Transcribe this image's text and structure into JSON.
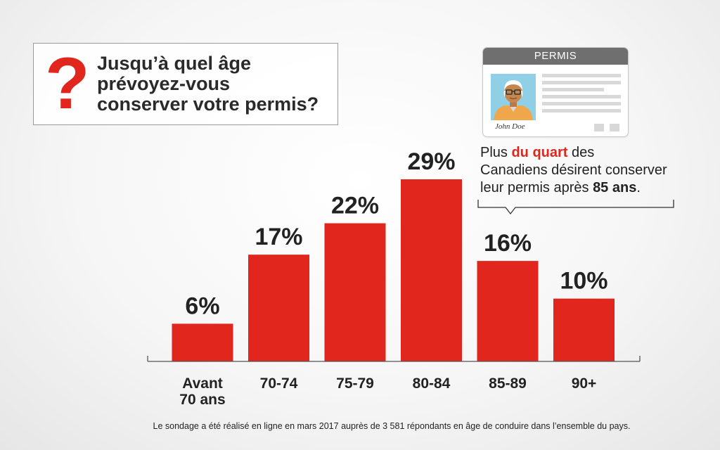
{
  "question": {
    "mark": "?",
    "line1": "Jusqu’à quel âge",
    "line2": "prévoyez-vous",
    "line3": "conserver votre permis?"
  },
  "license_card": {
    "header": "PERMIS",
    "name": "John Doe",
    "photo_icon": "person-portrait-icon"
  },
  "callout": {
    "part1": "Plus ",
    "highlight": "du quart",
    "part2": " des",
    "line2": "Canadiens désirent conserver",
    "line3_prefix": "leur permis après ",
    "line3_bold": "85 ans",
    "line3_suffix": "."
  },
  "chart_data": {
    "type": "bar",
    "categories": [
      "Avant\n70 ans",
      "70-74",
      "75-79",
      "80-84",
      "85-89",
      "90+"
    ],
    "values": [
      6,
      17,
      22,
      29,
      16,
      10
    ],
    "value_labels": [
      "6%",
      "17%",
      "22%",
      "29%",
      "16%",
      "10%"
    ],
    "unit": "%",
    "ylim": [
      0,
      30
    ],
    "grid": false,
    "legend": "none",
    "bar_color": "#e0261d"
  },
  "footnote": "Le sondage a été réalisé en ligne en mars 2017 auprès de 3 581 répondants en âge de conduire dans l’ensemble du pays.",
  "colors": {
    "accent_red": "#e0261d",
    "text_dark": "#222222",
    "card_header": "#6f6f6f",
    "photo_bg": "#8fd0e6"
  }
}
